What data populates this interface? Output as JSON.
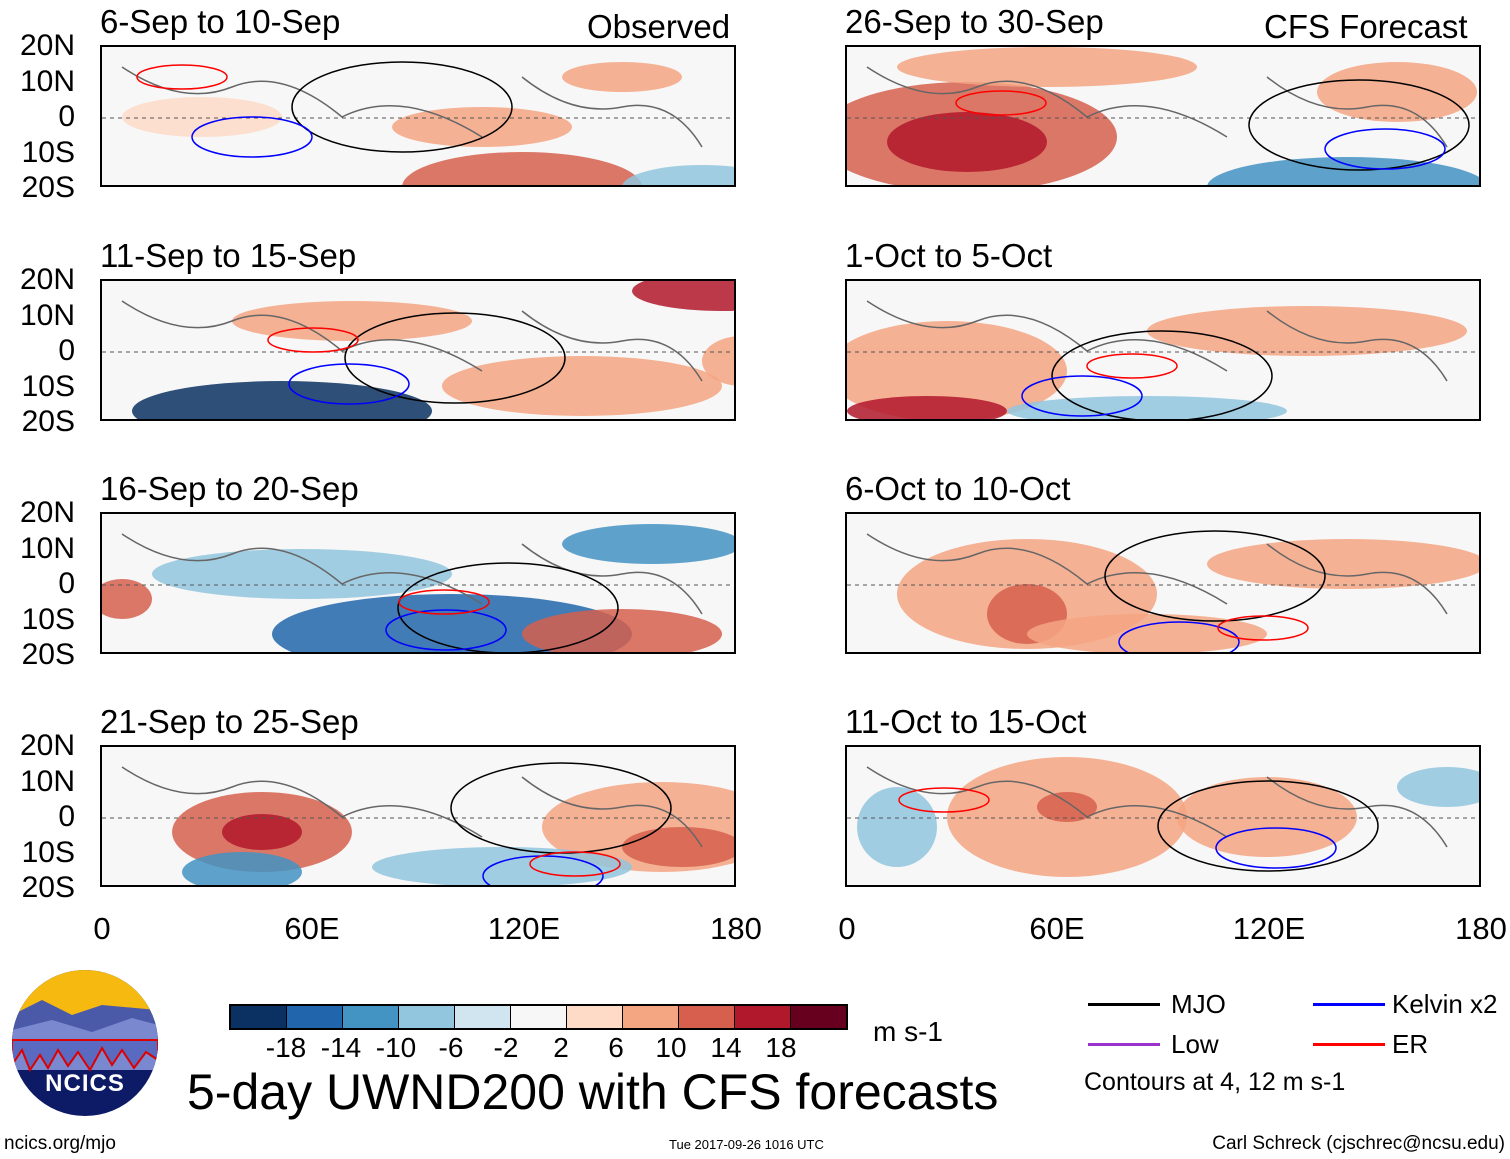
{
  "header": {
    "left": "Observed",
    "right": "CFS Forecast"
  },
  "panels": [
    {
      "title": "6-Sep to 10-Sep",
      "column": "observed"
    },
    {
      "title": "11-Sep to 15-Sep",
      "column": "observed"
    },
    {
      "title": "16-Sep to 20-Sep",
      "column": "observed"
    },
    {
      "title": "21-Sep to 25-Sep",
      "column": "observed"
    },
    {
      "title": "26-Sep to 30-Sep",
      "column": "forecast"
    },
    {
      "title": "1-Oct to 5-Oct",
      "column": "forecast"
    },
    {
      "title": "6-Oct to 10-Oct",
      "column": "forecast"
    },
    {
      "title": "11-Oct to 15-Oct",
      "column": "forecast"
    }
  ],
  "y_ticks": [
    "20N",
    "10N",
    "0",
    "10S",
    "20S"
  ],
  "x_ticks": [
    "0",
    "60E",
    "120E",
    "180"
  ],
  "colorbar": {
    "colors": [
      "#0a3162",
      "#2166ac",
      "#4393c3",
      "#92c5de",
      "#d1e5f0",
      "#f7f7f7",
      "#fddbc7",
      "#f4a582",
      "#d6604d",
      "#b2182b",
      "#67001f"
    ],
    "labels": [
      "-18",
      "-14",
      "-10",
      "-6",
      "-2",
      "2",
      "6",
      "10",
      "14",
      "18"
    ],
    "units": "m s-1"
  },
  "legend": {
    "items": [
      {
        "label": "MJO",
        "color": "#000000"
      },
      {
        "label": "Kelvin x2",
        "color": "#0000ff"
      },
      {
        "label": "Low",
        "color": "#9933cc"
      },
      {
        "label": "ER",
        "color": "#ff0000"
      }
    ],
    "note": "Contours at 4, 12 m s-1"
  },
  "title": "5-day UWND200 with CFS forecasts",
  "logo_text": "NCICS",
  "footer": {
    "left": "ncics.org/mjo",
    "center": "Tue 2017-09-26 1016 UTC",
    "right": "Carl Schreck (cjschrec@ncsu.edu)"
  }
}
